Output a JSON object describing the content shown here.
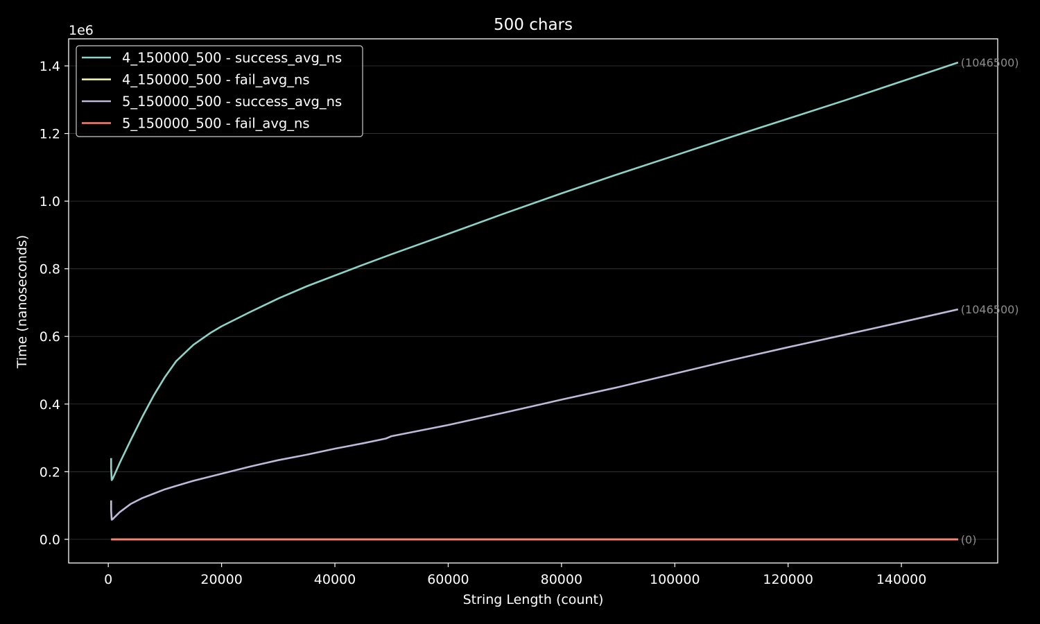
{
  "chart_data": {
    "type": "line",
    "title": "500 chars",
    "xlabel": "String Length (count)",
    "ylabel": "Time (nanoseconds)",
    "y_offset_label": "1e6",
    "xlim": [
      -7000,
      157000
    ],
    "ylim": [
      -0.07,
      1.48
    ],
    "x_ticks": [
      0,
      20000,
      40000,
      60000,
      80000,
      100000,
      120000,
      140000
    ],
    "x_tick_labels": [
      "0",
      "20000",
      "40000",
      "60000",
      "80000",
      "100000",
      "120000",
      "140000"
    ],
    "y_ticks": [
      0.0,
      0.2,
      0.4,
      0.6,
      0.8,
      1.0,
      1.2,
      1.4
    ],
    "y_tick_labels": [
      "0.0",
      "0.2",
      "0.4",
      "0.6",
      "0.8",
      "1.0",
      "1.2",
      "1.4"
    ],
    "y_grid": true,
    "legend_position": "top-left",
    "series": [
      {
        "name": "4_150000_500 - success_avg_ns",
        "color": "#8dd3c7",
        "end_label": "(1046500)",
        "points": [
          [
            500,
            0.24
          ],
          [
            500,
            0.21
          ],
          [
            600,
            0.175
          ],
          [
            800,
            0.18
          ],
          [
            2000,
            0.225
          ],
          [
            4000,
            0.295
          ],
          [
            6000,
            0.362
          ],
          [
            8000,
            0.425
          ],
          [
            10000,
            0.48
          ],
          [
            12000,
            0.527
          ],
          [
            15000,
            0.575
          ],
          [
            18000,
            0.61
          ],
          [
            20000,
            0.63
          ],
          [
            25000,
            0.672
          ],
          [
            30000,
            0.712
          ],
          [
            35000,
            0.748
          ],
          [
            40000,
            0.78
          ],
          [
            45000,
            0.812
          ],
          [
            50000,
            0.843
          ],
          [
            60000,
            0.903
          ],
          [
            70000,
            0.964
          ],
          [
            80000,
            1.023
          ],
          [
            90000,
            1.08
          ],
          [
            100000,
            1.135
          ],
          [
            110000,
            1.19
          ],
          [
            120000,
            1.244
          ],
          [
            130000,
            1.298
          ],
          [
            140000,
            1.354
          ],
          [
            150000,
            1.41
          ]
        ]
      },
      {
        "name": "4_150000_500 - fail_avg_ns",
        "color": "#ffffb3",
        "end_label": "",
        "points": [
          [
            500,
            0.0
          ],
          [
            150000,
            0.0
          ]
        ]
      },
      {
        "name": "5_150000_500 - success_avg_ns",
        "color": "#bebada",
        "end_label": "(1046500)",
        "points": [
          [
            500,
            0.115
          ],
          [
            500,
            0.085
          ],
          [
            600,
            0.058
          ],
          [
            800,
            0.06
          ],
          [
            2000,
            0.08
          ],
          [
            4000,
            0.105
          ],
          [
            6000,
            0.122
          ],
          [
            8000,
            0.135
          ],
          [
            10000,
            0.148
          ],
          [
            12000,
            0.158
          ],
          [
            15000,
            0.173
          ],
          [
            20000,
            0.194
          ],
          [
            25000,
            0.215
          ],
          [
            30000,
            0.234
          ],
          [
            35000,
            0.25
          ],
          [
            40000,
            0.268
          ],
          [
            45000,
            0.284
          ],
          [
            49000,
            0.298
          ],
          [
            50000,
            0.305
          ],
          [
            60000,
            0.338
          ],
          [
            70000,
            0.375
          ],
          [
            80000,
            0.413
          ],
          [
            90000,
            0.45
          ],
          [
            100000,
            0.49
          ],
          [
            110000,
            0.53
          ],
          [
            120000,
            0.568
          ],
          [
            130000,
            0.605
          ],
          [
            140000,
            0.642
          ],
          [
            150000,
            0.68
          ]
        ]
      },
      {
        "name": "5_150000_500 - fail_avg_ns",
        "color": "#fb8072",
        "end_label": "(0)",
        "points": [
          [
            500,
            0.0
          ],
          [
            150000,
            0.0
          ]
        ]
      }
    ]
  }
}
